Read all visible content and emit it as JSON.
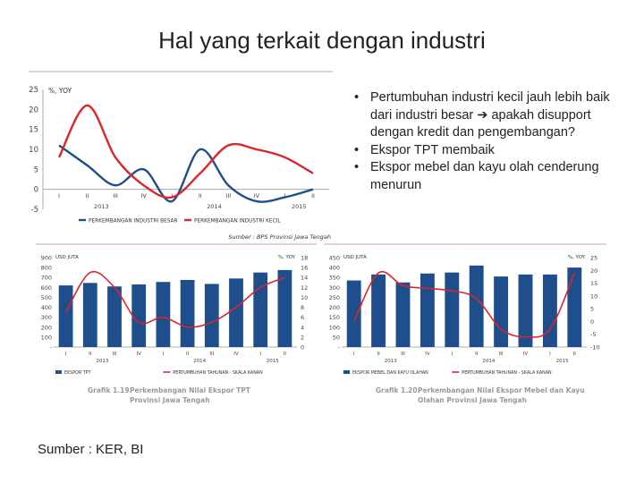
{
  "slide": {
    "title": "Hal yang terkait dengan industri",
    "source": "Sumber : KER, BI",
    "bullets": [
      "Pertumbuhan industri kecil jauh lebih baik dari industri besar ➔ apakah disupport dengan kredit dan pengembangan?",
      "Ekspor TPT membaik",
      "Ekspor mebel dan kayu olah cenderung menurun"
    ]
  },
  "colors": {
    "blue": "#1f4e8c",
    "red": "#d9262b",
    "rule": "#c9a7a7"
  },
  "chart_data": [
    {
      "type": "line",
      "ylabel": "%, YOY",
      "ylim": [
        -5,
        25
      ],
      "yticks": [
        "25",
        "20",
        "15",
        "10",
        "5",
        "0",
        "-5"
      ],
      "categories": [
        "I",
        "II",
        "III",
        "IV",
        "I",
        "II",
        "III",
        "IV",
        "I",
        "II"
      ],
      "years": [
        "2013",
        "2014",
        "2015"
      ],
      "series": [
        {
          "name": "PERKEMBANGAN INDUSTRI BESAR",
          "color": "#1f4e8c",
          "values": [
            11,
            6,
            1,
            5,
            -3,
            10,
            1,
            -3,
            -2,
            0
          ]
        },
        {
          "name": "PERKEMBANGAN INDUSTRI KECIL",
          "color": "#d9262b",
          "values": [
            8,
            21,
            8,
            1,
            -2,
            4,
            11,
            10,
            8,
            4
          ]
        }
      ],
      "source": "Sumber : BPS Provinsi Jawa Tengah"
    },
    {
      "type": "bar",
      "ylabel_left": "USD JUTA",
      "ylabel_right": "%, YOY",
      "ylim": [
        0,
        900
      ],
      "ylim_right": [
        0,
        18
      ],
      "yticks": [
        "900",
        "800",
        "700",
        "600",
        "500",
        "400",
        "300",
        "200",
        "100",
        "-"
      ],
      "yticks_right": [
        "18",
        "16",
        "14",
        "12",
        "10",
        "8",
        "6",
        "4",
        "2",
        "0"
      ],
      "categories": [
        "I",
        "II",
        "III",
        "IV",
        "I",
        "II",
        "III",
        "IV",
        "I",
        "II"
      ],
      "years": [
        "2013",
        "2014",
        "2015"
      ],
      "series": [
        {
          "name": "EKSPOR TPT",
          "color": "#1f4e8c",
          "values": [
            620,
            645,
            610,
            630,
            655,
            675,
            635,
            690,
            750,
            775
          ]
        },
        {
          "name": "PERTUMBUHAN TAHUNAN - SKALA KANAN",
          "color": "#d9262b",
          "values": [
            7,
            15,
            12,
            5,
            6,
            4,
            5,
            8,
            12,
            14
          ]
        }
      ],
      "caption_num": "Grafik 1.19.",
      "caption": "Perkembangan Nilai Ekspor TPT Provinsi Jawa Tengah"
    },
    {
      "type": "bar",
      "ylabel_left": "USD JUTA",
      "ylabel_right": "%, YOY",
      "ylim": [
        0,
        450
      ],
      "ylim_right": [
        -10,
        25
      ],
      "yticks": [
        "450",
        "400",
        "350",
        "300",
        "250",
        "200",
        "150",
        "100",
        "50",
        "-"
      ],
      "yticks_right": [
        "25",
        "20",
        "15",
        "10",
        "5",
        "0",
        "-5",
        "-10"
      ],
      "categories": [
        "I",
        "II",
        "III",
        "IV",
        "I",
        "II",
        "III",
        "IV",
        "I",
        "II"
      ],
      "years": [
        "2013",
        "2014",
        "2015"
      ],
      "series": [
        {
          "name": "EKSPOR MEBEL DAN KAYU OLAHAN",
          "color": "#1f4e8c",
          "values": [
            335,
            365,
            325,
            370,
            375,
            410,
            355,
            365,
            365,
            400
          ]
        },
        {
          "name": "PERTUMBUHAN TAHUNAN - SKALA KANAN",
          "color": "#d9262b",
          "values": [
            0,
            19,
            14,
            13,
            12,
            9,
            -3,
            -6,
            -3,
            19
          ]
        }
      ],
      "caption_num": "Grafik 1.20.",
      "caption": "Perkembangan Nilai Ekspor Mebel dan Kayu Olahan Provinsi Jawa Tengah"
    }
  ]
}
